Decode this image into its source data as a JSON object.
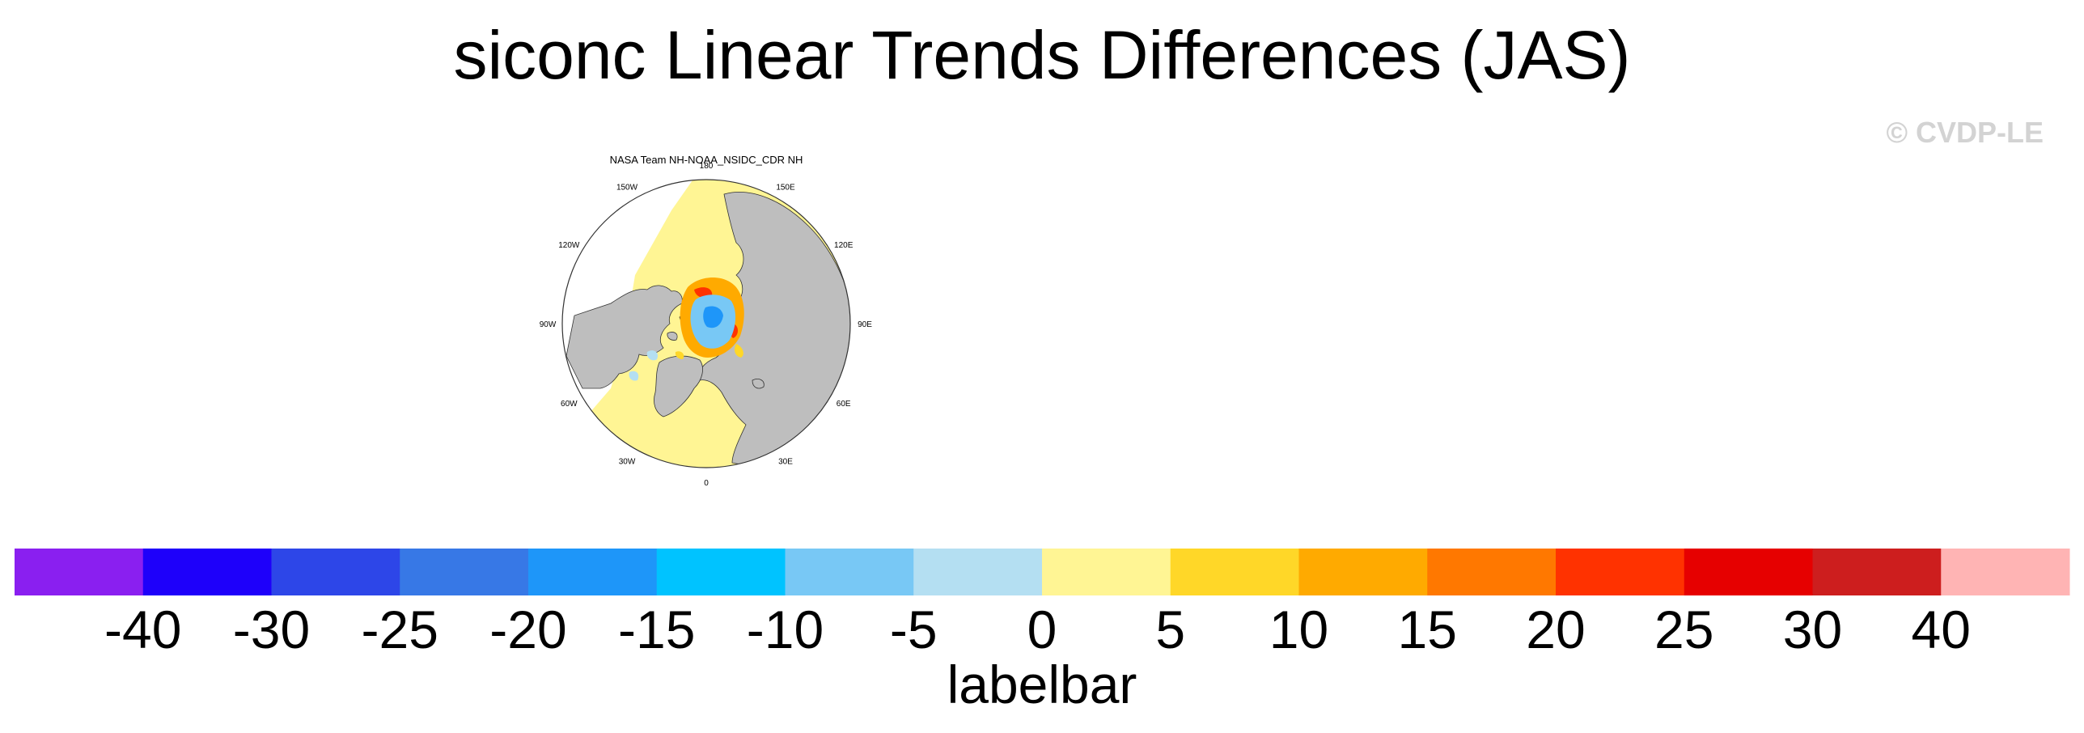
{
  "figure": {
    "title": "siconc Linear Trends Differences (JAS)",
    "watermark": "© CVDP-LE"
  },
  "chart_data": {
    "type": "heatmap",
    "projection": "north polar stereographic",
    "title": "NASA Team NH-NOAA_NSIDC_CDR NH",
    "longitude_labels": [
      "180",
      "150E",
      "120E",
      "90E",
      "60E",
      "30E",
      "0",
      "30W",
      "60W",
      "90W",
      "120W",
      "150W"
    ],
    "land_color": "#bebebe",
    "colorbar": {
      "label": "labelbar",
      "tick_labels": [
        "-40",
        "-30",
        "-25",
        "-20",
        "-15",
        "-10",
        "-5",
        "0",
        "5",
        "10",
        "15",
        "20",
        "25",
        "30",
        "40"
      ],
      "boundaries": [
        -40,
        -30,
        -25,
        -20,
        -15,
        -10,
        -5,
        0,
        5,
        10,
        15,
        20,
        25,
        30,
        40
      ],
      "colors": [
        "#8a1ff0",
        "#1e00fa",
        "#2d46e8",
        "#3778e6",
        "#1e96f9",
        "#00c3ff",
        "#78c8f5",
        "#b4dff2",
        "#fff594",
        "#ffd728",
        "#ffaa00",
        "#ff7800",
        "#ff3200",
        "#e60000",
        "#cd1e1e",
        "#ffb4b4"
      ]
    }
  }
}
